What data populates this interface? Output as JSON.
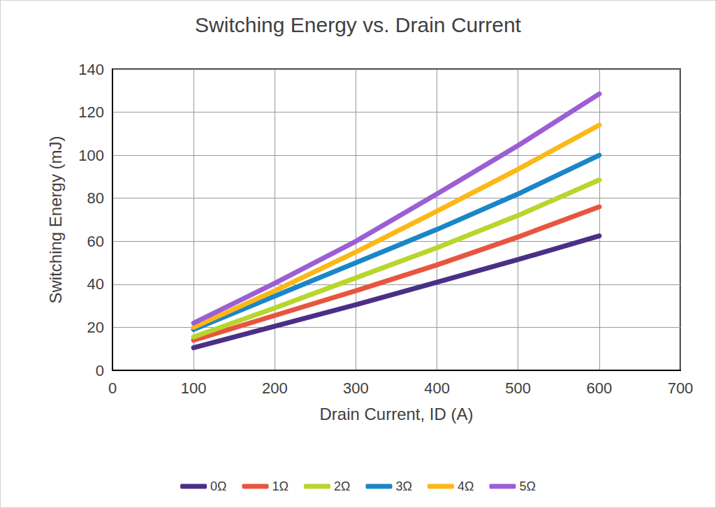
{
  "chart_data": {
    "type": "line",
    "title": "Switching Energy vs. Drain Current",
    "x_label": "Drain Current, ID (A)",
    "y_label": "Switching Energy (mJ)",
    "x": [
      100,
      200,
      300,
      400,
      500,
      600
    ],
    "series": [
      {
        "name": "0Ω",
        "color": "#4b2f86",
        "values": [
          10.5,
          20.5,
          30.5,
          41,
          51.5,
          62.5
        ]
      },
      {
        "name": "1Ω",
        "color": "#e8553e",
        "values": [
          14,
          25.5,
          37,
          49,
          62,
          76
        ]
      },
      {
        "name": "2Ω",
        "color": "#b8d62c",
        "values": [
          15.5,
          29,
          43,
          57,
          72,
          88.5
        ]
      },
      {
        "name": "3Ω",
        "color": "#1a86c8",
        "values": [
          19,
          34.5,
          50,
          65.5,
          82,
          100
        ]
      },
      {
        "name": "4Ω",
        "color": "#fbb817",
        "values": [
          20,
          37,
          55,
          74,
          93.5,
          114
        ]
      },
      {
        "name": "5Ω",
        "color": "#9b5fd3",
        "values": [
          22,
          40.5,
          60,
          82,
          104.5,
          128.5
        ]
      }
    ],
    "xlim": [
      0,
      700
    ],
    "xticks": [
      0,
      100,
      200,
      300,
      400,
      500,
      600,
      700
    ],
    "ylim": [
      0,
      140
    ],
    "yticks": [
      0,
      20,
      40,
      60,
      80,
      100,
      120,
      140
    ],
    "grid": true,
    "legend": "bottom"
  }
}
